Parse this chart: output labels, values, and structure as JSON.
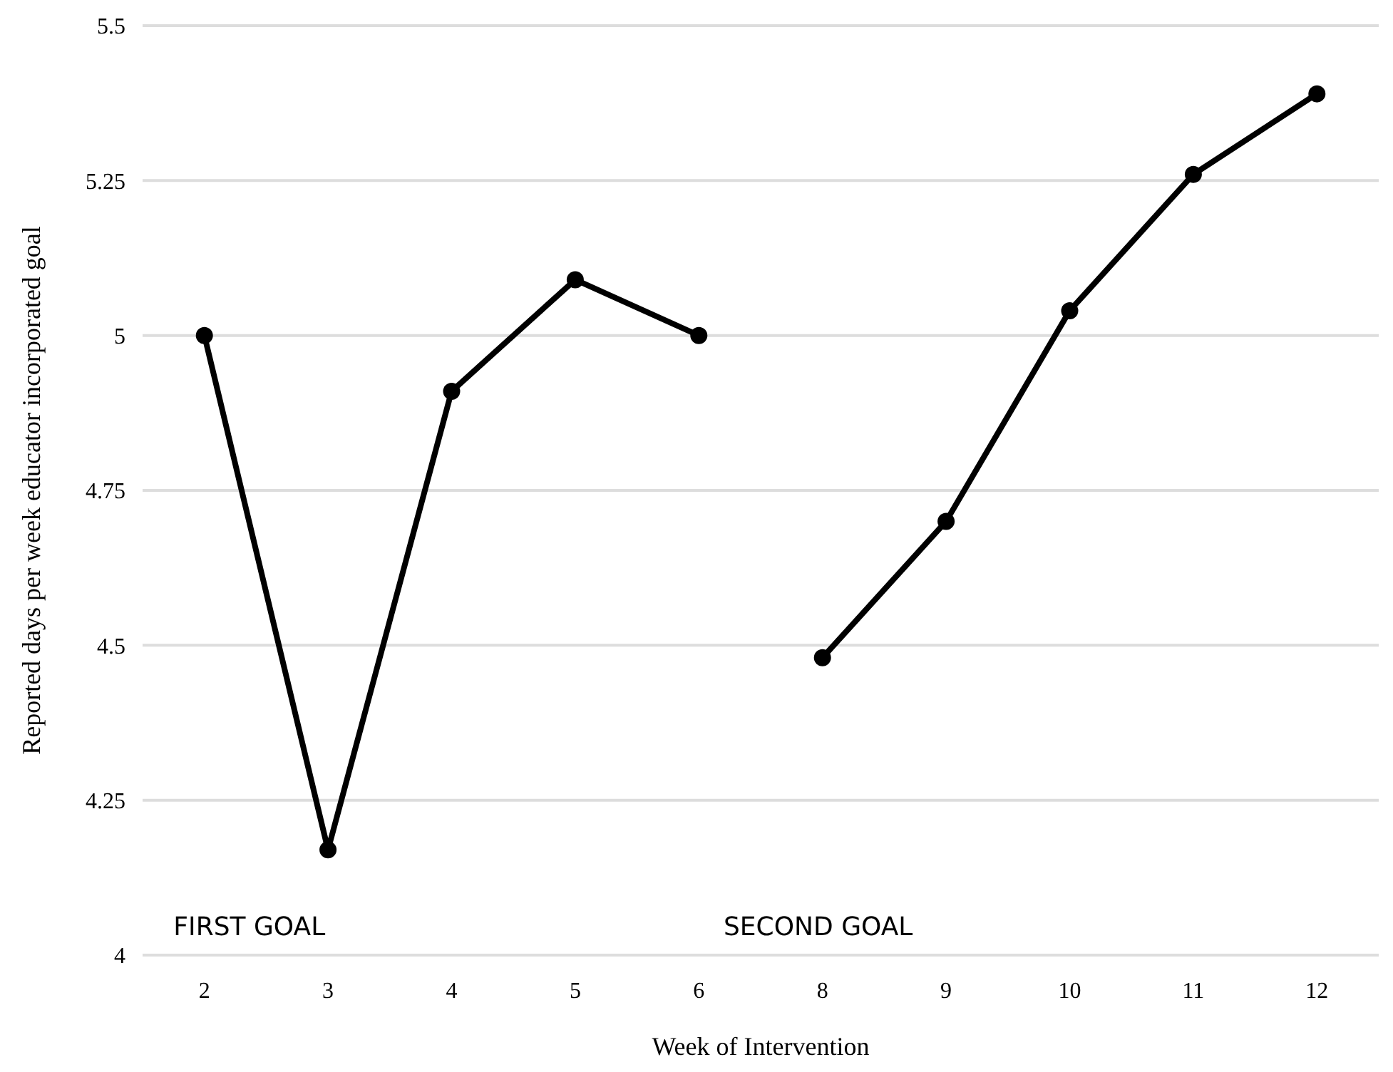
{
  "chart_data": {
    "type": "line",
    "xlabel": "Week of Intervention",
    "ylabel": "Reported days per week educator incorporated goal",
    "categories": [
      "2",
      "3",
      "4",
      "5",
      "6",
      "8",
      "9",
      "10",
      "11",
      "12"
    ],
    "series": [
      {
        "color": "#000000",
        "values": [
          5.0,
          4.17,
          4.91,
          5.09,
          5.0,
          null,
          null,
          null,
          null,
          null
        ]
      },
      {
        "color": "#000000",
        "values": [
          null,
          null,
          null,
          null,
          null,
          4.48,
          4.7,
          5.04,
          5.26,
          5.39
        ]
      }
    ],
    "ylim": [
      4,
      5.5
    ],
    "yticks": [
      4,
      4.25,
      4.5,
      4.75,
      5,
      5.25,
      5.5
    ],
    "grid": "y",
    "marker": "circle",
    "line_style": "solid",
    "annotations": [
      "FIRST GOAL",
      "SECOND GOAL"
    ]
  }
}
